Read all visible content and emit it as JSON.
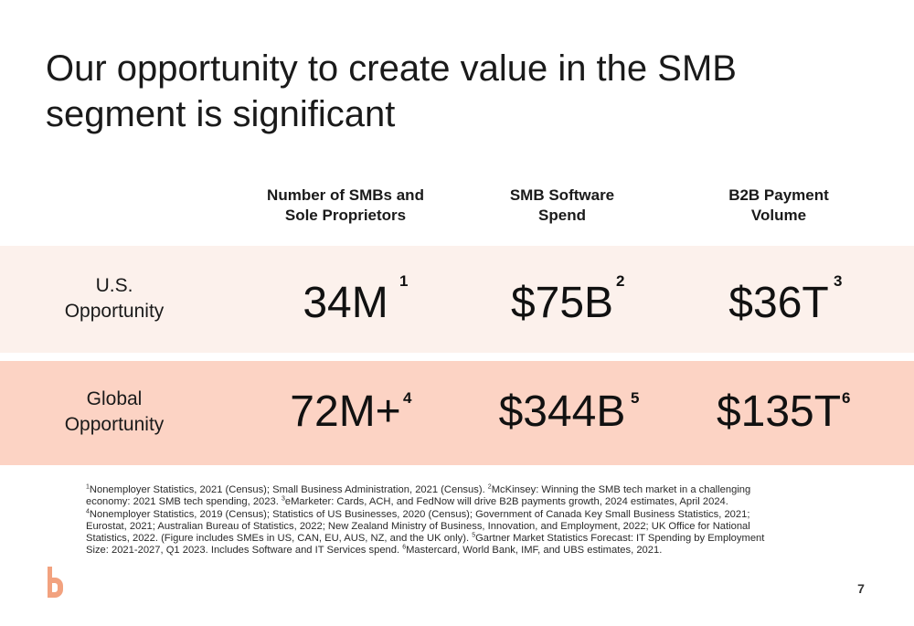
{
  "title": "Our opportunity to create value in the SMB segment is significant",
  "columns": [
    "Number of  SMBs and\nSole Proprietors",
    "SMB Software\nSpend",
    "B2B Payment\nVolume"
  ],
  "rows": [
    {
      "label": "U.S.\nOpportunity",
      "values": [
        "34M",
        "$75B",
        "$36T"
      ],
      "refs": [
        "1",
        "2",
        "3"
      ]
    },
    {
      "label": "Global\nOpportunity",
      "values": [
        "72M+",
        "$344B",
        "$135T"
      ],
      "refs": [
        "4",
        "5",
        "6"
      ]
    }
  ],
  "footnotes": [
    {
      "ref": "1",
      "text": "Nonemployer Statistics, 2021 (Census); Small Business Administration, 2021 (Census). "
    },
    {
      "ref": "2",
      "text": "McKinsey: Winning the SMB tech market in a challenging economy: 2021 SMB tech spending, 2023. "
    },
    {
      "ref": "3",
      "text": "eMarketer: Cards, ACH, and FedNow will drive B2B payments growth, 2024 estimates, April 2024. "
    },
    {
      "ref": "4",
      "text": "Nonemployer Statistics, 2019 (Census); Statistics of US Businesses, 2020 (Census); Government of Canada Key Small Business Statistics, 2021; Eurostat, 2021; Australian Bureau of Statistics, 2022; New Zealand Ministry of Business, Innovation, and Employment, 2022; UK Office for National Statistics, 2022. (Figure includes SMEs in US, CAN, EU, AUS, NZ, and the UK only). "
    },
    {
      "ref": "5",
      "text": "Gartner Market Statistics Forecast: IT Spending by Employment Size: 2021-2027, Q1 2023. Includes Software and IT Services spend. "
    },
    {
      "ref": "6",
      "text": "Mastercard, World Bank, IMF, and UBS estimates, 2021."
    }
  ],
  "page_number": "7",
  "colors": {
    "us_row_bg": "#fcf1ec",
    "global_row_bg": "#fcd3c4",
    "logo": "#f2a27f"
  },
  "logo_icon": "brand-b-logo-icon"
}
